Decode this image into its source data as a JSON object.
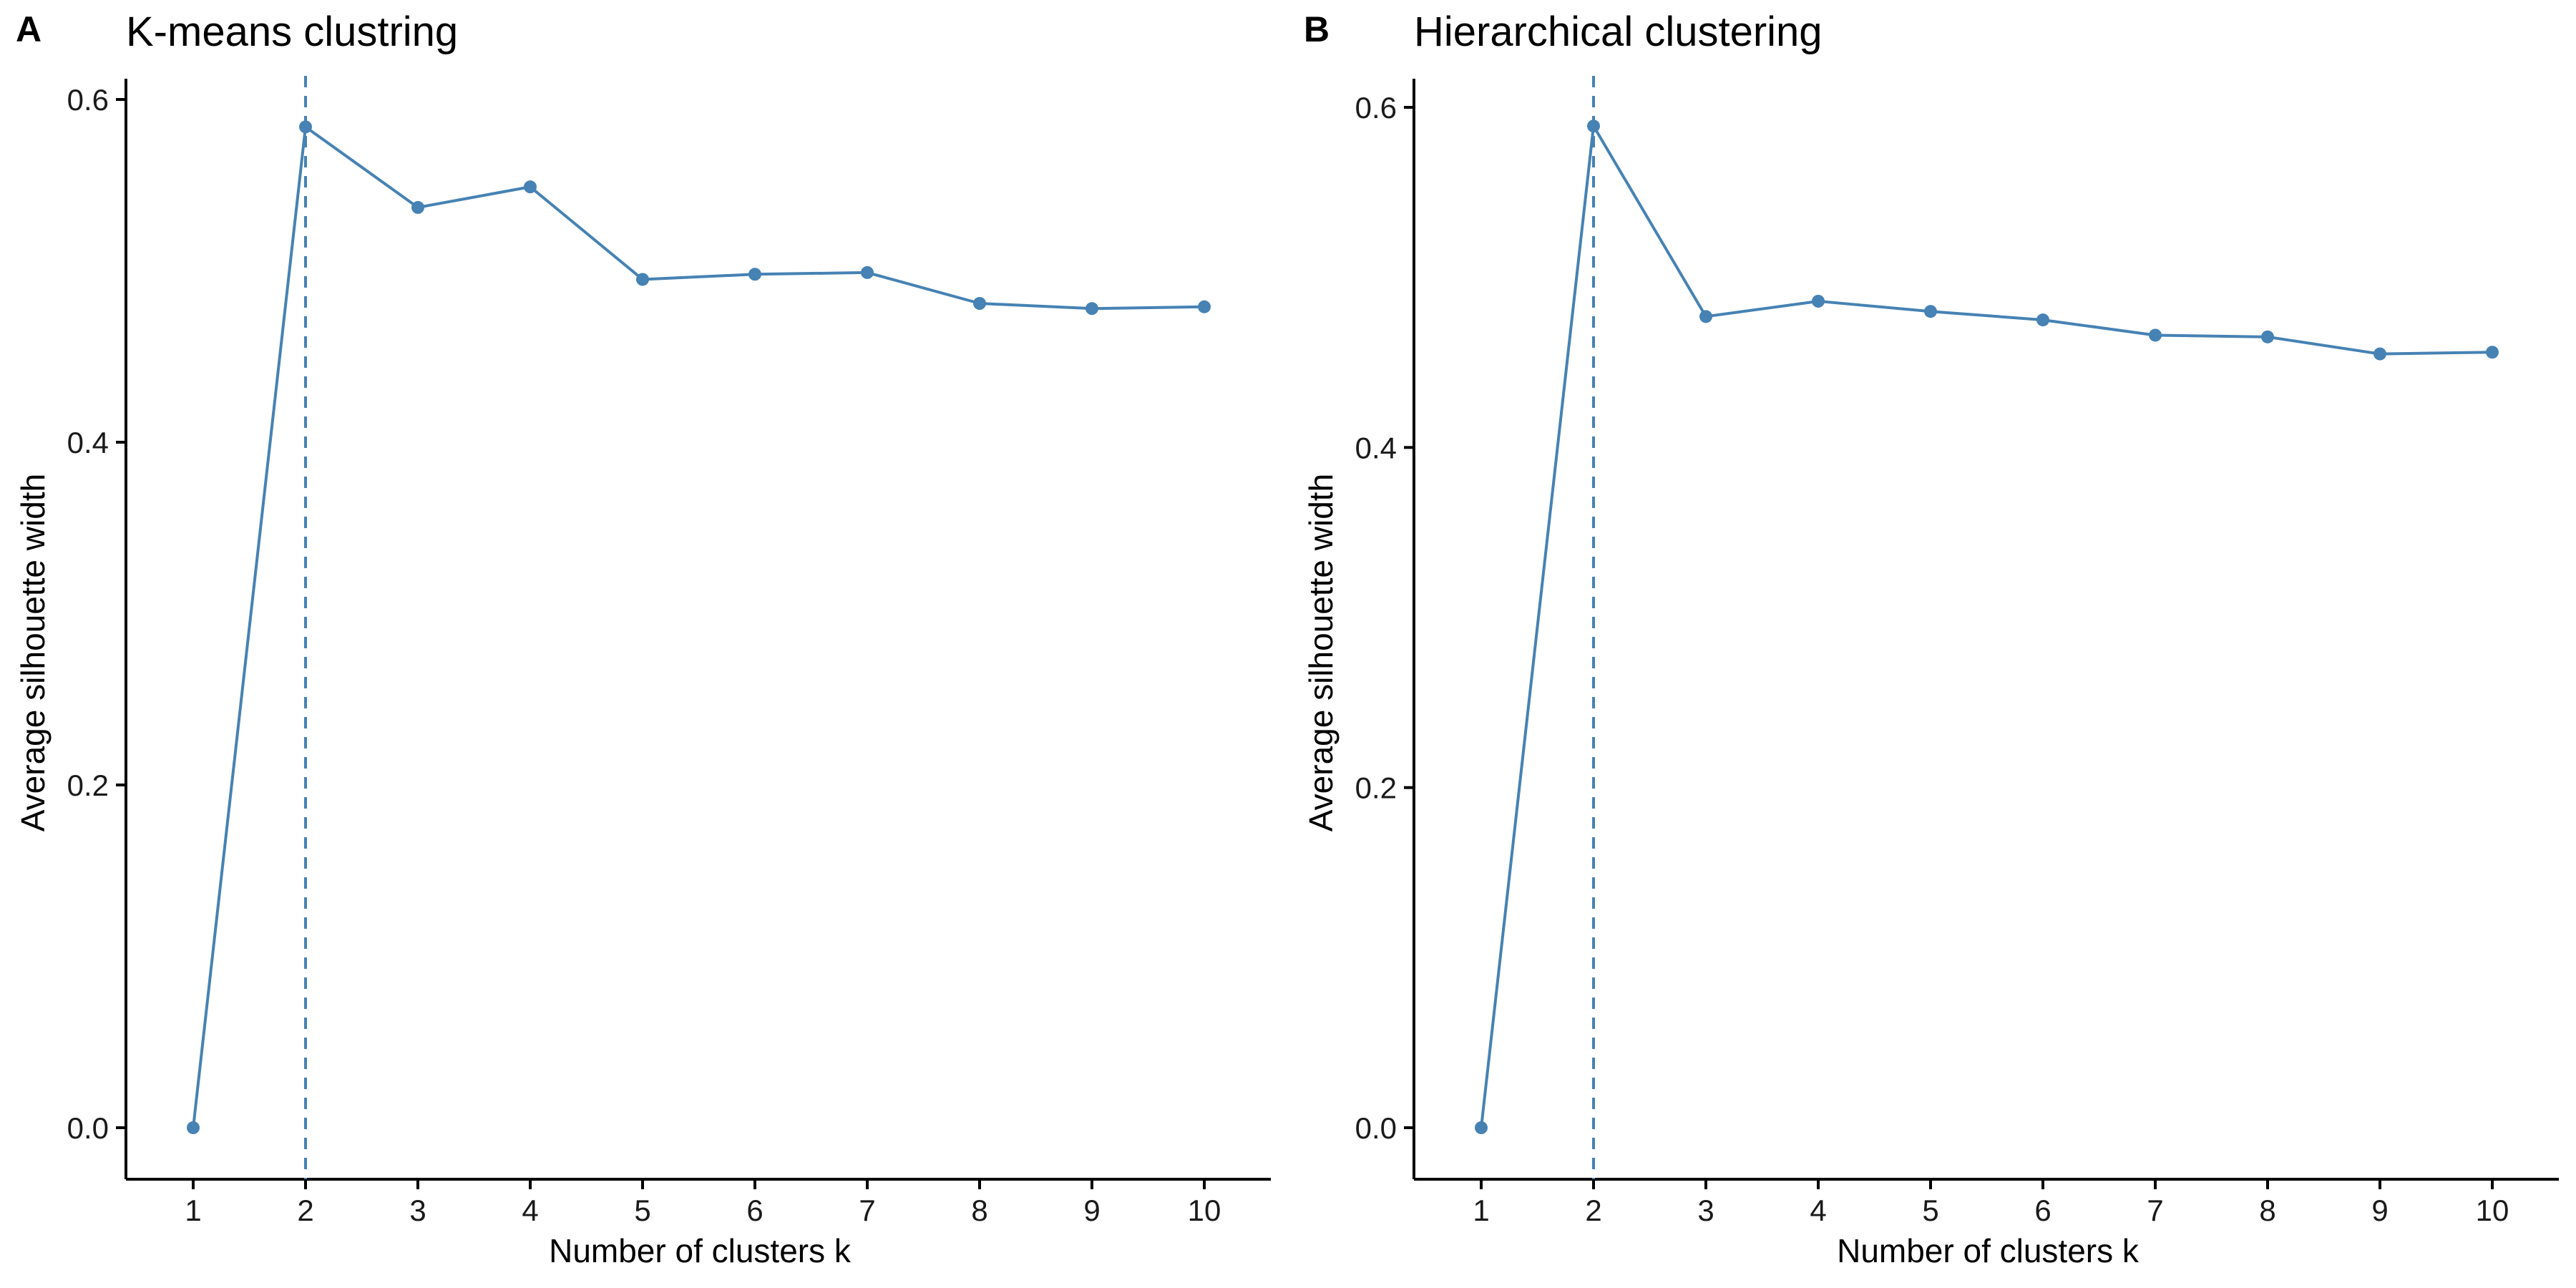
{
  "chart_data": [
    {
      "type": "line",
      "tag": "A",
      "title": "K-means clustring",
      "xlabel": "Number of clusters k",
      "ylabel": "Average silhouette width",
      "x": [
        1,
        2,
        3,
        4,
        5,
        6,
        7,
        8,
        9,
        10
      ],
      "values": [
        0.0,
        0.584,
        0.537,
        0.549,
        0.495,
        0.498,
        0.499,
        0.481,
        0.478,
        0.479
      ],
      "xlim": [
        1,
        10
      ],
      "ylim": [
        0,
        0.6
      ],
      "yticks": [
        "0.0",
        "0.2",
        "0.4",
        "0.6"
      ],
      "ytick_values": [
        0,
        0.2,
        0.4,
        0.6
      ],
      "xticks": [
        "1",
        "2",
        "3",
        "4",
        "5",
        "6",
        "7",
        "8",
        "9",
        "10"
      ],
      "optimal_k": 2,
      "color": "#4682B4",
      "grid": false,
      "legend": "none"
    },
    {
      "type": "line",
      "tag": "B",
      "title": "Hierarchical clustering",
      "xlabel": "Number of clusters k",
      "ylabel": "Average silhouette width",
      "x": [
        1,
        2,
        3,
        4,
        5,
        6,
        7,
        8,
        9,
        10
      ],
      "values": [
        0.0,
        0.589,
        0.477,
        0.486,
        0.48,
        0.475,
        0.466,
        0.465,
        0.455,
        0.456
      ],
      "xlim": [
        1,
        10
      ],
      "ylim": [
        0,
        0.6
      ],
      "yticks": [
        "0.0",
        "0.2",
        "0.4",
        "0.6"
      ],
      "ytick_values": [
        0,
        0.2,
        0.4,
        0.6
      ],
      "xticks": [
        "1",
        "2",
        "3",
        "4",
        "5",
        "6",
        "7",
        "8",
        "9",
        "10"
      ],
      "optimal_k": 2,
      "color": "#4682B4",
      "grid": false,
      "legend": "none"
    }
  ]
}
